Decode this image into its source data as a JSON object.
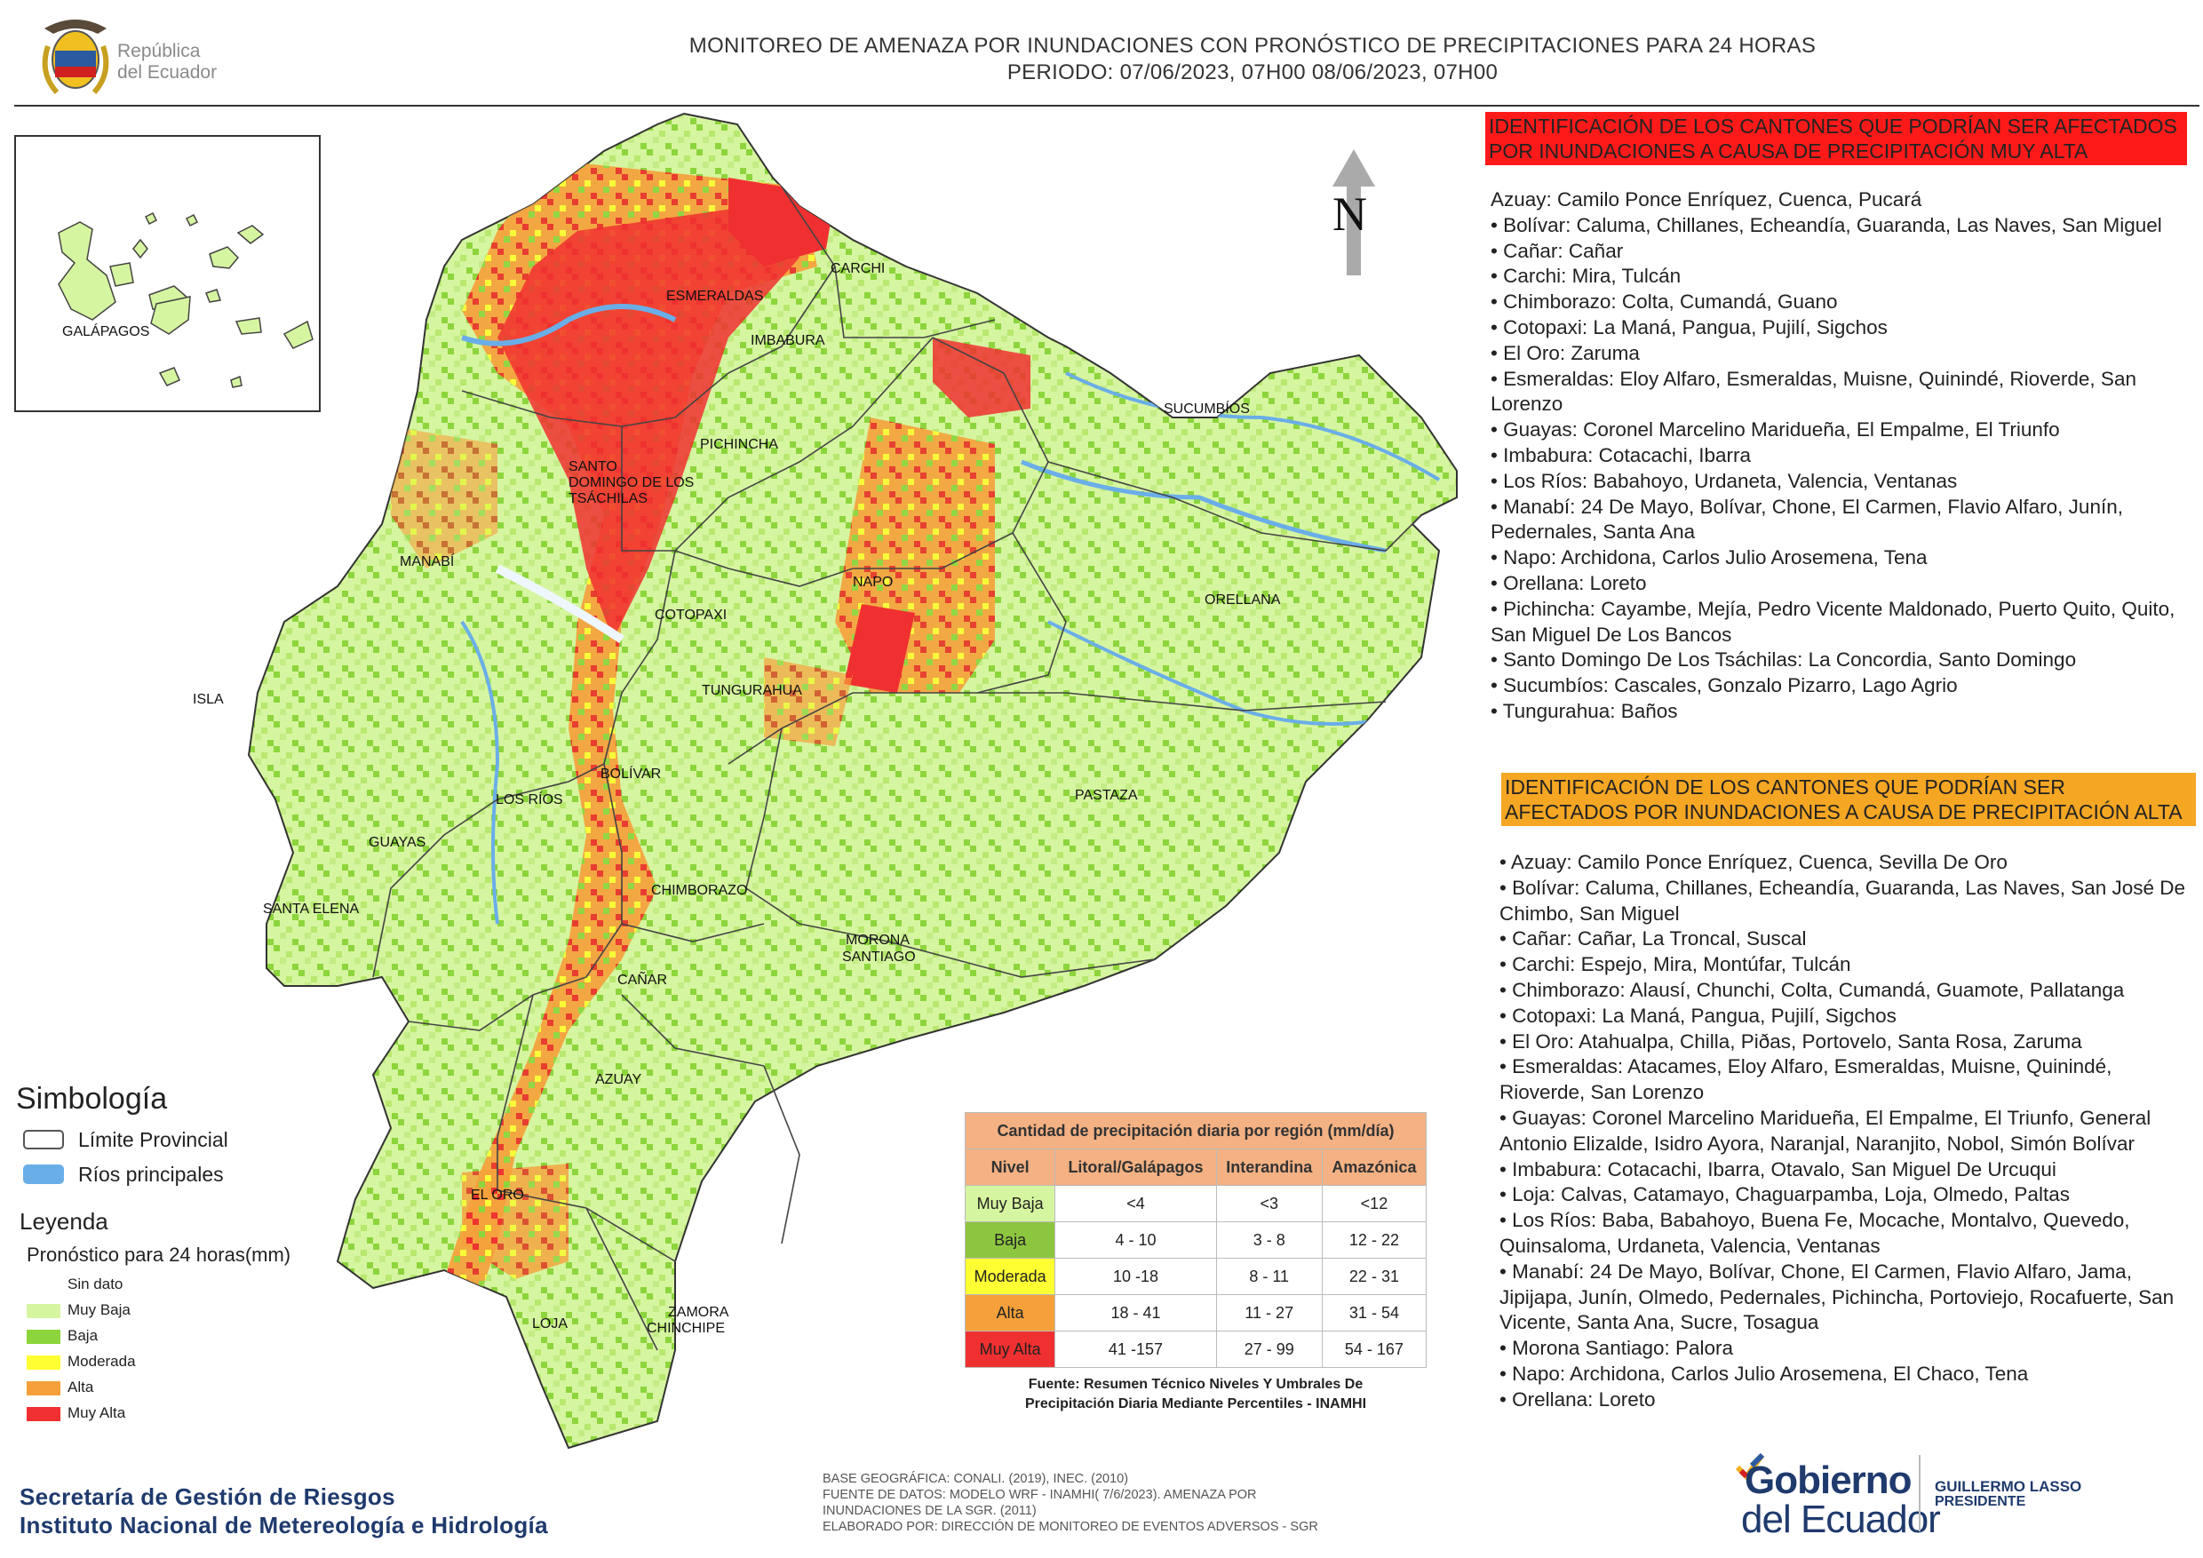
{
  "header": {
    "country_logo_line1": "República",
    "country_logo_line2": "del Ecuador",
    "title_line1": "MONITOREO DE AMENAZA POR INUNDACIONES  CON PRONÓSTICO DE  PRECIPITACIONES PARA 24 HORAS",
    "title_line2": "PERIODO: 07/06/2023, 07H00 08/06/2023, 07H00"
  },
  "map": {
    "north_label": "N",
    "inset_label": "GALÁPAGOS",
    "provinces": [
      "ESMERALDAS",
      "CARCHI",
      "IMBABURA",
      "SUCUMBÍOS",
      "PICHINCHA",
      "SANTO",
      "DOMINGO DE LOS",
      "TSÁCHILAS",
      "MANABÍ",
      "NAPO",
      "ORELLANA",
      "COTOPAXI",
      "TUNGURAHUA",
      "ISLA",
      "BOLÍVAR",
      "LOS RÍOS",
      "PASTAZA",
      "GUAYAS",
      "CHIMBORAZO",
      "SANTA ELENA",
      "MORONA",
      "SANTIAGO",
      "CAÑAR",
      "AZUAY",
      "EL ORO",
      "ZAMORA",
      "CHINCHIPE",
      "LOJA"
    ]
  },
  "legend": {
    "simbologia_title": "Simbología",
    "limite_label": "Límite Provincial",
    "rios_label": "Ríos principales",
    "leyenda_title": "Leyenda",
    "pronostico_title": "Pronóstico para 24 horas(mm)",
    "levels": [
      {
        "label": "Sin dato",
        "color": "#ffffff"
      },
      {
        "label": "Muy Baja",
        "color": "#d6f5a0"
      },
      {
        "label": "Baja",
        "color": "#8cd53c"
      },
      {
        "label": "Moderada",
        "color": "#ffff33"
      },
      {
        "label": "Alta",
        "color": "#f5a03a"
      },
      {
        "label": "Muy Alta",
        "color": "#f03030"
      }
    ]
  },
  "precip_table": {
    "title": "Cantidad de precipitación diaria por región (mm/día)",
    "headers": [
      "Nivel",
      "Litoral/Galápagos",
      "Interandina",
      "Amazónica"
    ],
    "rows": [
      {
        "nivel": "Muy Baja",
        "color": "#d6f5a0",
        "litoral": "<4",
        "interandina": "<3",
        "amazonica": "<12"
      },
      {
        "nivel": "Baja",
        "color": "#8cc63f",
        "litoral": "4 - 10",
        "interandina": "3 - 8",
        "amazonica": "12 - 22"
      },
      {
        "nivel": "Moderada",
        "color": "#ffff33",
        "litoral": "10 -18",
        "interandina": "8 - 11",
        "amazonica": "22 - 31"
      },
      {
        "nivel": "Alta",
        "color": "#f5a03a",
        "litoral": "18 - 41",
        "interandina": "11 - 27",
        "amazonica": "31 - 54"
      },
      {
        "nivel": "Muy Alta",
        "color": "#f03030",
        "litoral": "41 -157",
        "interandina": "27 - 99",
        "amazonica": "54 - 167"
      }
    ],
    "source_line1": "Fuente: Resumen Técnico Niveles Y Umbrales De",
    "source_line2": "Precipitación Diaria Mediante Percentiles - INAMHI"
  },
  "very_high": {
    "heading": "IDENTIFICACIÓN DE LOS CANTONES QUE PODRÍAN SER AFECTADOS POR INUNDACIONES  A CAUSA DE PRECIPITACIÓN MUY ALTA",
    "list": "Azuay: Camilo Ponce Enríquez, Cuenca, Pucará\n• Bolívar: Caluma, Chillanes, Echeandía, Guaranda, Las Naves, San Miguel\n• Cañar: Cañar\n• Carchi: Mira, Tulcán\n• Chimborazo: Colta, Cumandá, Guano\n• Cotopaxi: La Maná, Pangua, Pujilí, Sigchos\n• El Oro: Zaruma\n• Esmeraldas: Eloy Alfaro, Esmeraldas, Muisne, Quinindé, Rioverde, San Lorenzo\n• Guayas: Coronel Marcelino Maridueña, El Empalme, El Triunfo\n• Imbabura: Cotacachi, Ibarra\n• Los Ríos: Babahoyo, Urdaneta, Valencia, Ventanas\n• Manabí: 24 De Mayo, Bolívar, Chone, El Carmen, Flavio Alfaro, Junín, Pedernales, Santa Ana\n• Napo: Archidona, Carlos Julio Arosemena, Tena\n• Orellana: Loreto\n• Pichincha: Cayambe, Mejía, Pedro Vicente Maldonado, Puerto Quito, Quito, San Miguel De Los Bancos\n• Santo Domingo De Los Tsáchilas: La Concordia, Santo Domingo\n• Sucumbíos: Cascales, Gonzalo Pizarro, Lago Agrio\n• Tungurahua: Baños"
  },
  "high": {
    "heading": "IDENTIFICACIÓN DE LOS CANTONES QUE  PODRÍAN SER AFECTADOS POR INUNDACIONES  A CAUSA DE PRECIPITACIÓN ALTA",
    "list": "• Azuay: Camilo Ponce Enríquez, Cuenca, Sevilla De Oro\n• Bolívar: Caluma, Chillanes, Echeandía, Guaranda, Las Naves, San José De Chimbo, San Miguel\n• Cañar: Cañar, La Troncal, Suscal\n• Carchi: Espejo, Mira, Montúfar, Tulcán\n• Chimborazo: Alausí, Chunchi, Colta, Cumandá, Guamote, Pallatanga\n• Cotopaxi: La Maná, Pangua, Pujilí, Sigchos\n• El Oro: Atahualpa, Chilla, Piðas, Portovelo, Santa Rosa, Zaruma\n• Esmeraldas: Atacames, Eloy Alfaro, Esmeraldas, Muisne, Quinindé, Rioverde, San Lorenzo\n• Guayas: Coronel Marcelino Maridueña, El Empalme, El Triunfo, General Antonio Elizalde, Isidro Ayora, Naranjal, Naranjito, Nobol, Simón Bolívar\n• Imbabura: Cotacachi, Ibarra, Otavalo, San Miguel De Urcuqui\n• Loja: Calvas, Catamayo, Chaguarpamba, Loja, Olmedo, Paltas\n• Los Ríos: Baba, Babahoyo, Buena Fe, Mocache, Montalvo, Quevedo, Quinsaloma, Urdaneta, Valencia, Ventanas\n• Manabí: 24 De Mayo, Bolívar, Chone, El Carmen, Flavio Alfaro, Jama, Jipijapa, Junín, Olmedo, Pedernales, Pichincha, Portoviejo, Rocafuerte, San Vicente, Santa Ana, Sucre, Tosagua\n• Morona Santiago: Palora\n• Napo: Archidona, Carlos Julio Arosemena, El Chaco, Tena\n• Orellana: Loreto"
  },
  "footer": {
    "sgr_line1": "Secretaría de Gestión de Riesgos",
    "sgr_line2": "Instituto Nacional de Metereología e Hidrología",
    "credits": "BASE GEOGRÁFICA: CONALI. (2019), INEC. (2010)\nFUENTE DE DATOS: MODELO WRF - INAMHI( 7/6/2023).  AMENAZA POR\nINUNDACIONES DE LA SGR. (2011)\nELABORADO POR: DIRECCIÓN DE MONITOREO DE EVENTOS ADVERSOS - SGR",
    "gob_line1": "Gobierno",
    "gob_line2": "del Ecuador",
    "pres_line1": "GUILLERMO LASSO",
    "pres_line2": "PRESIDENTE"
  },
  "colors": {
    "muy_baja": "#d6f5a0",
    "baja": "#8cd53c",
    "moderada": "#ffff33",
    "alta": "#f5a03a",
    "muy_alta": "#f03030",
    "rios": "#6aaee8"
  }
}
